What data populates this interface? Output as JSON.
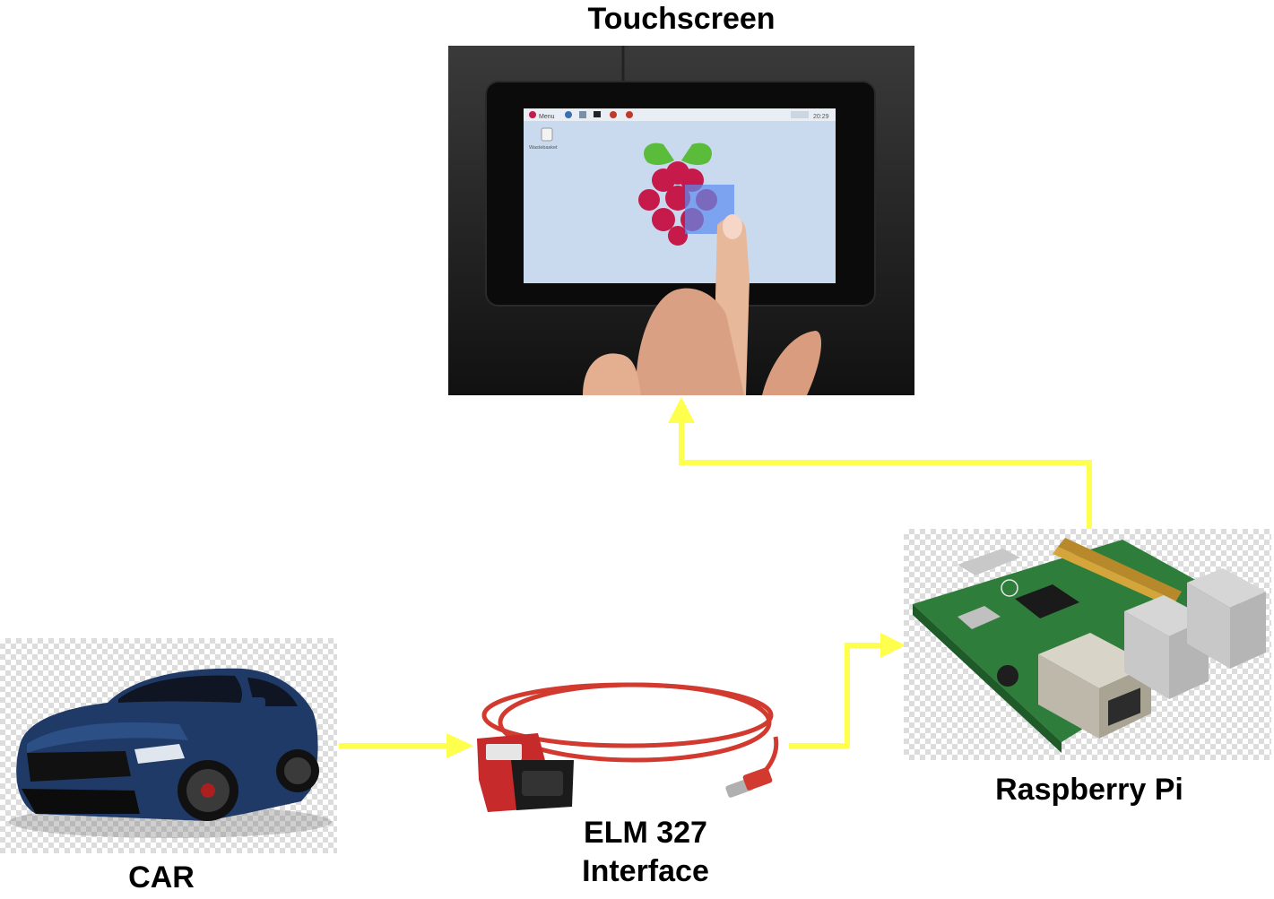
{
  "nodes": {
    "touchscreen": {
      "label": "Touchscreen"
    },
    "car": {
      "label": "CAR"
    },
    "elm": {
      "label_line1": "ELM 327",
      "label_line2": "Interface"
    },
    "pi": {
      "label": "Raspberry Pi"
    }
  },
  "screen_ui": {
    "menu_label": "Menu",
    "clock": "20:29",
    "desktop_icon_label": "Wastebasket"
  },
  "colors": {
    "arrow": "#ffff4d",
    "car_body": "#1f3a66",
    "cable": "#d23a30",
    "pcb": "#2f7d3a"
  }
}
